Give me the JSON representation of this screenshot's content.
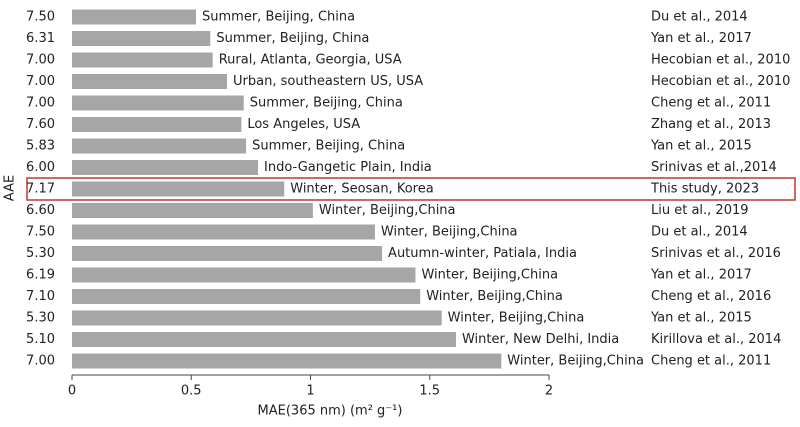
{
  "chart_data": {
    "type": "barh",
    "xlabel": "MAE(365 nm) (m² g⁻¹)",
    "ylabel": "AAE",
    "categories": [
      "7.50",
      "6.31",
      "7.00",
      "7.00",
      "7.00",
      "7.60",
      "5.83",
      "6.00",
      "7.17",
      "6.60",
      "7.50",
      "5.30",
      "6.19",
      "7.10",
      "5.30",
      "5.10",
      "7.00"
    ],
    "locations": [
      "Summer, Beijing, China",
      "Summer, Beijing, China",
      "Rural, Atlanta, Georgia, USA",
      "Urban, southeastern US, USA",
      "Summer, Beijing, China",
      "Los Angeles, USA",
      "Summer, Beijing, China",
      "Indo-Gangetic Plain, India",
      "Winter, Seosan, Korea",
      "Winter, Beijing,China",
      "Winter, Beijing,China",
      "Autumn-winter, Patiala, India",
      "Winter, Beijing,China",
      "Winter, Beijing,China",
      "Winter, Beijing,China",
      "Winter, New Delhi, India",
      "Winter, Beijing,China"
    ],
    "references": [
      "Du et al., 2014",
      "Yan et al., 2017",
      "Hecobian et al., 2010",
      "Hecobian et al., 2010",
      "Cheng et al., 2011",
      "Zhang et al., 2013",
      "Yan et al., 2015",
      "Srinivas et al.,2014",
      "This study, 2023",
      "Liu et al., 2019",
      "Du et al., 2014",
      "Srinivas et al., 2016",
      "Yan et al., 2017",
      "Cheng et al., 2016",
      "Yan et al., 2015",
      "Kirillova et al., 2014",
      "Cheng et al., 2011"
    ],
    "values": [
      0.52,
      0.58,
      0.59,
      0.65,
      0.72,
      0.71,
      0.73,
      0.78,
      0.89,
      1.01,
      1.27,
      1.3,
      1.44,
      1.46,
      1.55,
      1.61,
      1.8
    ],
    "color": "#a6a6a6",
    "highlight_index": 8,
    "highlight_color": "#c0392b",
    "xlim": [
      0,
      2
    ],
    "xticks": [
      0,
      0.5,
      1,
      1.5,
      2
    ],
    "grid": false
  }
}
